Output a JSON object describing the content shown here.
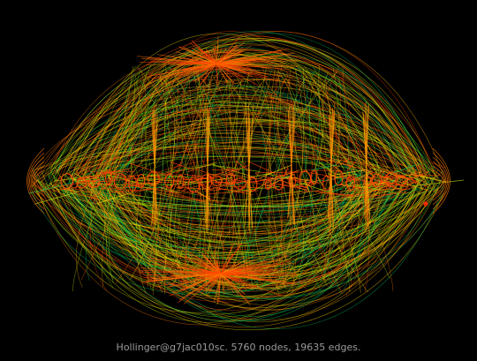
{
  "caption": "Hollinger@g7jac010sc. 5760 nodes, 19635 edges.",
  "colors": {
    "background": "#000000",
    "caption": "#9a9a9a",
    "edge_palette": [
      "#ff4500",
      "#ff7a00",
      "#ffb000",
      "#ffe000",
      "#c8e600",
      "#7cdc00",
      "#00c864",
      "#ff2a00"
    ]
  }
}
